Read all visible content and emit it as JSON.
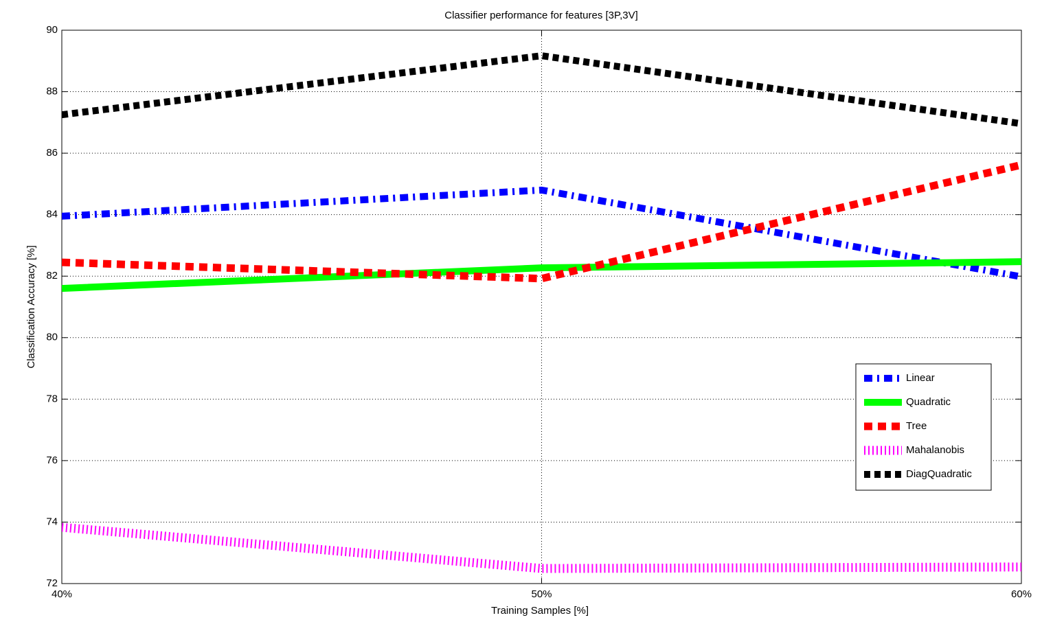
{
  "chart_data": {
    "type": "line",
    "title": "Classifier performance for features [3P,3V]",
    "x_label": "Training Samples [%]",
    "y_label": "Classification Accuracy [%]",
    "x": [
      40,
      50,
      60
    ],
    "xlim": [
      40,
      60
    ],
    "xticks": [
      {
        "value": 40,
        "label": "40%"
      },
      {
        "value": 50,
        "label": "50%"
      },
      {
        "value": 60,
        "label": "60%"
      }
    ],
    "ylim": [
      72,
      90
    ],
    "yticks": [
      72,
      74,
      76,
      78,
      80,
      82,
      84,
      86,
      88,
      90
    ],
    "grid": true,
    "legend": "southeast",
    "series": [
      {
        "name": "Linear",
        "color": "#0000ff",
        "linestyle": "dashdot",
        "values": [
          83.95,
          84.8,
          81.98
        ]
      },
      {
        "name": "Quadratic",
        "color": "#00ff00",
        "linestyle": "solid",
        "values": [
          81.6,
          82.27,
          82.47
        ]
      },
      {
        "name": "Tree",
        "color": "#ff0000",
        "linestyle": "dashed",
        "values": [
          82.45,
          81.92,
          85.62
        ]
      },
      {
        "name": "Mahalanobis",
        "color": "#ff00ff",
        "linestyle": "dotted",
        "values": [
          73.83,
          72.49,
          72.54
        ]
      },
      {
        "name": "DiagQuadratic",
        "color": "#000000",
        "linestyle": "squaredot",
        "values": [
          87.25,
          89.17,
          86.96
        ]
      }
    ]
  }
}
